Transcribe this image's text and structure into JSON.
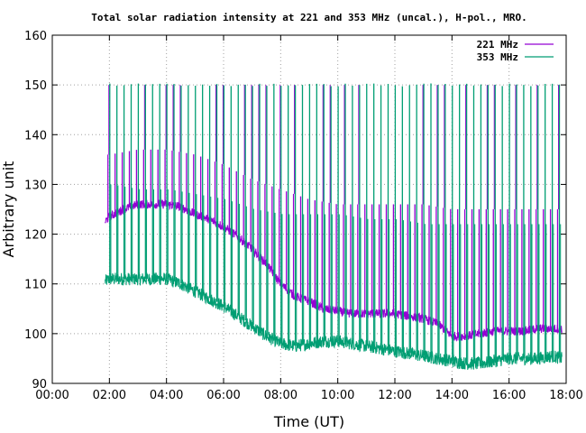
{
  "chart_data": {
    "type": "line",
    "title": "Total solar radiation intensity at 221 and 353 MHz (uncal.), H-pol., MRO.",
    "xlabel": "Time (UT)",
    "ylabel": "Arbitrary unit",
    "xlim_hours": [
      0,
      18
    ],
    "ylim": [
      90,
      160
    ],
    "x_ticks": [
      "00:00",
      "02:00",
      "04:00",
      "06:00",
      "08:00",
      "10:00",
      "12:00",
      "14:00",
      "16:00",
      "18:00"
    ],
    "y_ticks": [
      "90",
      "100",
      "110",
      "120",
      "130",
      "140",
      "150",
      "160"
    ],
    "grid": true,
    "legend_position": "top-right",
    "series": [
      {
        "name": "221 MHz",
        "color": "#9400d3",
        "baseline_hours": [
          1.85,
          2.0,
          2.5,
          3.0,
          3.5,
          4.0,
          4.5,
          5.0,
          5.5,
          6.0,
          6.5,
          7.0,
          7.5,
          8.0,
          8.5,
          9.0,
          9.5,
          10.0,
          10.5,
          11.0,
          11.5,
          12.0,
          12.5,
          13.0,
          13.5,
          14.0,
          14.5,
          15.0,
          15.5,
          16.0,
          16.5,
          17.0,
          17.5,
          17.85
        ],
        "baseline_values": [
          122.5,
          123.5,
          125.0,
          126.0,
          126.0,
          126.0,
          125.5,
          124.0,
          123.0,
          121.5,
          119.5,
          117.0,
          114.0,
          110.0,
          107.5,
          106.5,
          105.0,
          104.5,
          104.0,
          104.0,
          104.0,
          104.0,
          103.5,
          103.0,
          102.0,
          99.5,
          99.5,
          100.0,
          100.5,
          100.5,
          100.5,
          101.0,
          101.0,
          101.0
        ],
        "spike_top_hours": [
          2.0,
          3.0,
          4.0,
          5.0,
          6.0,
          7.0,
          8.0,
          9.0,
          10.0,
          11.0,
          12.0,
          13.0,
          14.0,
          15.0,
          16.0,
          17.0,
          17.85
        ],
        "spike_top_values": [
          136,
          137,
          137,
          136,
          134,
          131,
          129,
          127,
          126,
          126,
          126,
          126,
          125,
          125,
          125,
          125,
          125
        ],
        "calibration_spike_peak": 150
      },
      {
        "name": "353 MHz",
        "color": "#009e73",
        "baseline_hours": [
          1.85,
          2.0,
          2.5,
          3.0,
          3.5,
          4.0,
          4.5,
          5.0,
          5.5,
          6.0,
          6.5,
          7.0,
          7.5,
          8.0,
          8.5,
          9.0,
          9.5,
          10.0,
          10.5,
          11.0,
          11.5,
          12.0,
          12.5,
          13.0,
          13.5,
          14.0,
          14.5,
          15.0,
          15.5,
          16.0,
          16.5,
          17.0,
          17.5,
          17.85
        ],
        "baseline_values": [
          110.5,
          111.0,
          111.0,
          111.0,
          111.0,
          111.0,
          110.0,
          108.5,
          107.0,
          105.5,
          103.5,
          101.5,
          99.5,
          98.0,
          97.5,
          98.0,
          98.5,
          98.5,
          98.0,
          97.5,
          97.0,
          96.5,
          96.0,
          95.5,
          95.0,
          94.5,
          94.0,
          94.0,
          94.5,
          95.0,
          95.0,
          95.0,
          95.5,
          95.0
        ],
        "spike_top_hours": [
          2.0,
          3.0,
          4.0,
          5.0,
          6.0,
          7.0,
          8.0,
          9.0,
          10.0,
          11.0,
          12.0,
          13.0,
          14.0,
          15.0,
          16.0,
          17.0,
          17.85
        ],
        "spike_top_values": [
          130,
          129,
          129,
          128,
          127,
          125,
          124,
          124,
          124,
          123,
          123,
          122,
          122,
          122,
          122,
          122,
          122
        ],
        "calibration_spike_peak": 150
      }
    ],
    "calibration_spike_interval_hours": 0.25,
    "data_start_hours": 1.85,
    "data_end_hours": 17.85
  }
}
